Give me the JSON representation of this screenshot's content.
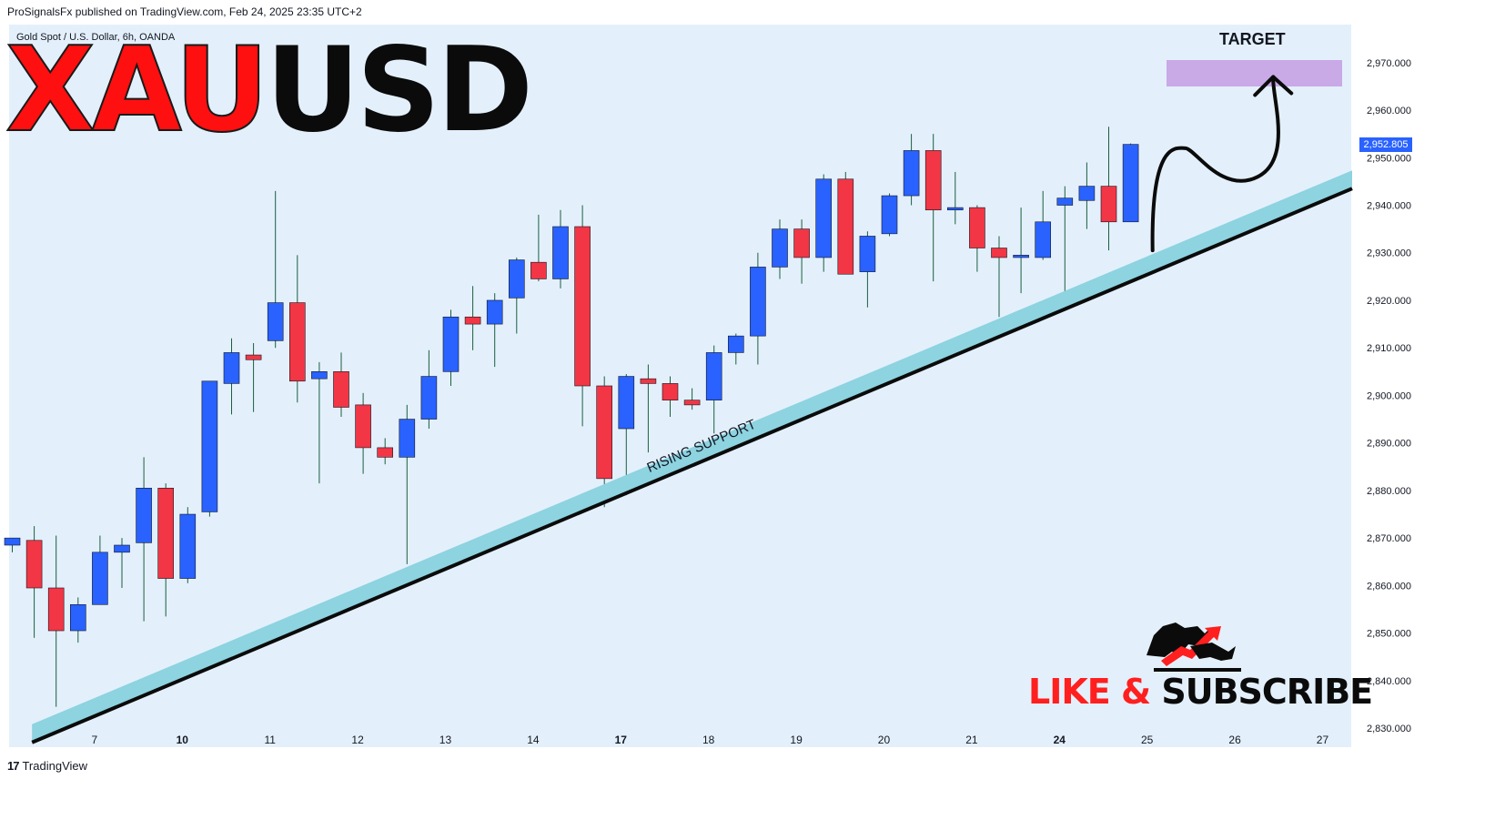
{
  "header": {
    "published_text": "ProSignalsFx published on TradingView.com, Feb 24, 2025 23:35 UTC+2"
  },
  "symbol": {
    "label": "Gold Spot / U.S. Dollar, 6h, OANDA"
  },
  "title": {
    "part_red": "XAU",
    "part_black": "USD"
  },
  "target": {
    "label": "TARGET",
    "zone_low": 2965,
    "zone_high": 2970.5,
    "zone_color": "#c9a9e6"
  },
  "support": {
    "label": "RISING SUPPORT",
    "color": "#8dd3e0"
  },
  "last_price": {
    "label": "2,952.805",
    "color": "#2962ff"
  },
  "subscribe": {
    "part_red": "LIKE &",
    "part_black": "SUBSCRIBE"
  },
  "footer": {
    "brand": "TradingView"
  },
  "colors": {
    "up": "#2962ff",
    "down": "#f23645",
    "plot_bg": "#e3f0fb"
  },
  "chart_data": {
    "type": "candlestick",
    "title": "Gold Spot / U.S. Dollar, 6h, OANDA",
    "ylim": [
      2826,
      2978
    ],
    "y_ticks": [
      "2,970.000",
      "2,960.000",
      "2,950.000",
      "2,940.000",
      "2,930.000",
      "2,920.000",
      "2,910.000",
      "2,900.000",
      "2,890.000",
      "2,880.000",
      "2,870.000",
      "2,860.000",
      "2,850.000",
      "2,840.000",
      "2,830.000"
    ],
    "y_tick_values": [
      2970,
      2960,
      2950,
      2940,
      2930,
      2920,
      2910,
      2900,
      2890,
      2880,
      2870,
      2860,
      2850,
      2840,
      2830
    ],
    "x_ticks": [
      {
        "label": "7",
        "index": 3.75,
        "bold": false
      },
      {
        "label": "10",
        "index": 7.75,
        "bold": true
      },
      {
        "label": "11",
        "index": 11.75,
        "bold": false
      },
      {
        "label": "12",
        "index": 15.75,
        "bold": false
      },
      {
        "label": "13",
        "index": 19.75,
        "bold": false
      },
      {
        "label": "14",
        "index": 23.75,
        "bold": false
      },
      {
        "label": "17",
        "index": 27.75,
        "bold": true
      },
      {
        "label": "18",
        "index": 31.75,
        "bold": false
      },
      {
        "label": "19",
        "index": 35.75,
        "bold": false
      },
      {
        "label": "20",
        "index": 39.75,
        "bold": false
      },
      {
        "label": "21",
        "index": 43.75,
        "bold": false
      },
      {
        "label": "24",
        "index": 47.75,
        "bold": true
      },
      {
        "label": "25",
        "index": 51.75,
        "bold": false
      },
      {
        "label": "26",
        "index": 55.75,
        "bold": false
      },
      {
        "label": "27",
        "index": 59.75,
        "bold": false
      }
    ],
    "candles": [
      {
        "o": 2868.5,
        "h": 2870,
        "l": 2867,
        "c": 2870
      },
      {
        "o": 2869.5,
        "h": 2872.5,
        "l": 2849,
        "c": 2859.5
      },
      {
        "o": 2859.5,
        "h": 2870.5,
        "l": 2834.5,
        "c": 2850.5
      },
      {
        "o": 2850.5,
        "h": 2857.5,
        "l": 2848,
        "c": 2856
      },
      {
        "o": 2856,
        "h": 2870.5,
        "l": 2856,
        "c": 2867
      },
      {
        "o": 2867,
        "h": 2870,
        "l": 2859.5,
        "c": 2868.5
      },
      {
        "o": 2869,
        "h": 2887,
        "l": 2852.5,
        "c": 2880.5
      },
      {
        "o": 2880.5,
        "h": 2881.5,
        "l": 2853.5,
        "c": 2861.5
      },
      {
        "o": 2861.5,
        "h": 2876.5,
        "l": 2860.5,
        "c": 2875
      },
      {
        "o": 2875.5,
        "h": 2903,
        "l": 2874.5,
        "c": 2903
      },
      {
        "o": 2902.5,
        "h": 2912,
        "l": 2896,
        "c": 2909
      },
      {
        "o": 2908.5,
        "h": 2911,
        "l": 2896.5,
        "c": 2907.5
      },
      {
        "o": 2911.5,
        "h": 2943,
        "l": 2910,
        "c": 2919.5
      },
      {
        "o": 2919.5,
        "h": 2929.5,
        "l": 2898.5,
        "c": 2903
      },
      {
        "o": 2903.5,
        "h": 2907,
        "l": 2881.5,
        "c": 2905
      },
      {
        "o": 2905,
        "h": 2909,
        "l": 2895.5,
        "c": 2897.5
      },
      {
        "o": 2898,
        "h": 2900.5,
        "l": 2883.5,
        "c": 2889
      },
      {
        "o": 2889,
        "h": 2891,
        "l": 2885.5,
        "c": 2887
      },
      {
        "o": 2887,
        "h": 2898,
        "l": 2864.5,
        "c": 2895
      },
      {
        "o": 2895,
        "h": 2909.5,
        "l": 2893,
        "c": 2904
      },
      {
        "o": 2905,
        "h": 2918,
        "l": 2902,
        "c": 2916.5
      },
      {
        "o": 2916.5,
        "h": 2923,
        "l": 2909.5,
        "c": 2915
      },
      {
        "o": 2915,
        "h": 2921.5,
        "l": 2906,
        "c": 2920
      },
      {
        "o": 2920.5,
        "h": 2929,
        "l": 2913,
        "c": 2928.5
      },
      {
        "o": 2928,
        "h": 2938,
        "l": 2924,
        "c": 2924.5
      },
      {
        "o": 2924.5,
        "h": 2939,
        "l": 2922.5,
        "c": 2935.5
      },
      {
        "o": 2935.5,
        "h": 2940,
        "l": 2893.5,
        "c": 2902
      },
      {
        "o": 2902,
        "h": 2904,
        "l": 2876.5,
        "c": 2882.5
      },
      {
        "o": 2893,
        "h": 2904.5,
        "l": 2879,
        "c": 2904
      },
      {
        "o": 2903.5,
        "h": 2906.5,
        "l": 2888,
        "c": 2902.5
      },
      {
        "o": 2902.5,
        "h": 2904,
        "l": 2895.5,
        "c": 2899
      },
      {
        "o": 2899,
        "h": 2901.5,
        "l": 2897,
        "c": 2898
      },
      {
        "o": 2899,
        "h": 2910.5,
        "l": 2892,
        "c": 2909
      },
      {
        "o": 2909,
        "h": 2913,
        "l": 2906.5,
        "c": 2912.5
      },
      {
        "o": 2912.5,
        "h": 2930,
        "l": 2906.5,
        "c": 2927
      },
      {
        "o": 2927,
        "h": 2937,
        "l": 2924.5,
        "c": 2935
      },
      {
        "o": 2935,
        "h": 2937,
        "l": 2923.5,
        "c": 2929
      },
      {
        "o": 2929,
        "h": 2946.5,
        "l": 2926,
        "c": 2945.5
      },
      {
        "o": 2945.5,
        "h": 2947,
        "l": 2925.5,
        "c": 2925.5
      },
      {
        "o": 2926,
        "h": 2934.5,
        "l": 2918.5,
        "c": 2933.5
      },
      {
        "o": 2934,
        "h": 2942.5,
        "l": 2933.5,
        "c": 2942
      },
      {
        "o": 2942,
        "h": 2955,
        "l": 2940,
        "c": 2951.5
      },
      {
        "o": 2951.5,
        "h": 2955,
        "l": 2924,
        "c": 2939
      },
      {
        "o": 2939,
        "h": 2947,
        "l": 2936,
        "c": 2939.5
      },
      {
        "o": 2939.5,
        "h": 2940,
        "l": 2926,
        "c": 2931
      },
      {
        "o": 2931,
        "h": 2933.5,
        "l": 2916.5,
        "c": 2929
      },
      {
        "o": 2929,
        "h": 2939.5,
        "l": 2921.5,
        "c": 2929.5
      },
      {
        "o": 2929,
        "h": 2943,
        "l": 2928.5,
        "c": 2936.5
      },
      {
        "o": 2940,
        "h": 2944,
        "l": 2921.5,
        "c": 2941.5
      },
      {
        "o": 2941,
        "h": 2949,
        "l": 2935,
        "c": 2944
      },
      {
        "o": 2944,
        "h": 2956.5,
        "l": 2930.5,
        "c": 2936.5
      },
      {
        "o": 2936.5,
        "h": 2953,
        "l": 2936.5,
        "c": 2952.8
      }
    ],
    "support_line": {
      "start": {
        "index": 0.9,
        "price": 2827
      },
      "end": {
        "index": 61.1,
        "price": 2943.5
      }
    },
    "projection_path": [
      {
        "index": 52,
        "price": 2930.5
      },
      {
        "index": 53.5,
        "price": 2952
      },
      {
        "index": 55.5,
        "price": 2946
      },
      {
        "index": 56.8,
        "price": 2946
      },
      {
        "index": 57.5,
        "price": 2967
      }
    ]
  }
}
